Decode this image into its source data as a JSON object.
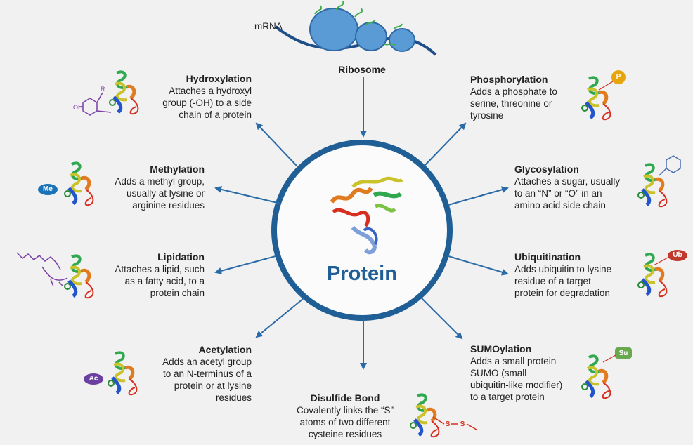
{
  "mrna_label": "mRNA",
  "ribosome_label": "Ribosome",
  "center_label": "Protein",
  "modifications": {
    "hydroxylation": {
      "title": "Hydroxylation",
      "desc": [
        "Attaches a hydroxyl",
        "group (-OH)  to a side",
        "chain of a protein"
      ],
      "molecule": [
        "OH",
        "R"
      ]
    },
    "methylation": {
      "title": "Methylation",
      "desc": [
        "Adds a methyl group,",
        "usually at lysine or",
        "arginine residues"
      ],
      "tag": "Me"
    },
    "lipidation": {
      "title": "Lipidation",
      "desc": [
        "Attaches a lipid, such",
        "as a fatty acid, to a",
        "protein chain"
      ]
    },
    "acetylation": {
      "title": "Acetylation",
      "desc": [
        "Adds an acetyl group",
        "to an N-terminus of a",
        "protein or at lysine",
        "residues"
      ],
      "tag": "Ac"
    },
    "disulfide": {
      "title": "Disulfide Bond",
      "desc": [
        "Covalently links the “S”",
        "atoms of two different",
        "cysteine residues"
      ],
      "tag": [
        "S",
        "S"
      ]
    },
    "sumoylation": {
      "title": "SUMOylation",
      "desc": [
        "Adds a small protein",
        "SUMO (small",
        "ubiquitin-like modifier)",
        "to a target protein"
      ],
      "tag": "Su"
    },
    "ubiquitination": {
      "title": "Ubiquitination",
      "desc": [
        "Adds ubiquitin to lysine",
        "residue of a target",
        "protein for degradation"
      ],
      "tag": "Ub"
    },
    "glycosylation": {
      "title": "Glycosylation",
      "desc": [
        "Attaches a sugar, usually",
        "to an “N” or “O” in an",
        "amino acid side chain"
      ]
    },
    "phosphorylation": {
      "title": "Phosphorylation",
      "desc": [
        "Adds a phosphate to",
        "serine, threonine or",
        "tyrosine"
      ],
      "tag": "P"
    }
  },
  "colors": {
    "circle": "#1f5f95",
    "arrow": "#2a6aa6",
    "me_tag": "#1a73b8",
    "ac_tag": "#6b3fa0",
    "ub_tag": "#c0392b",
    "su_tag": "#6aa84f",
    "p_tag": "#e6a50a"
  }
}
